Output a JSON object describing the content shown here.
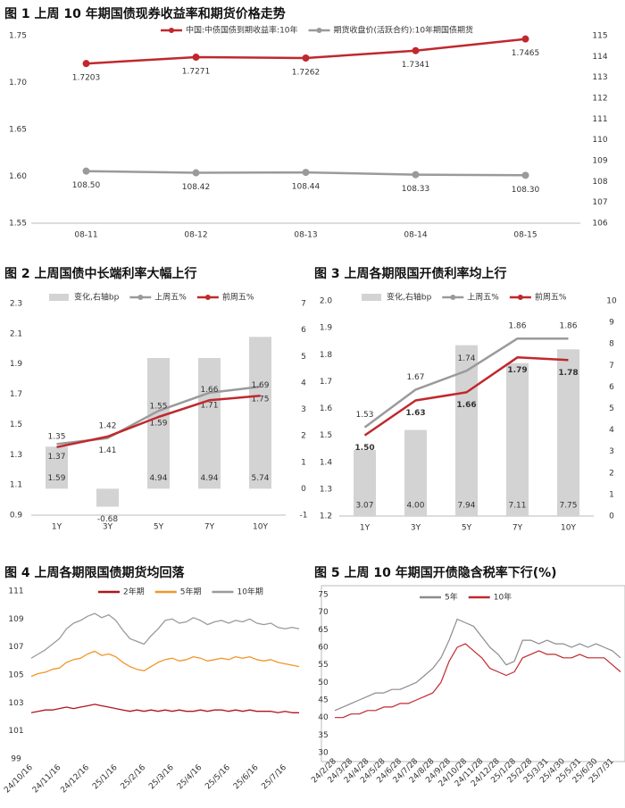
{
  "chart_data": [
    {
      "type": "line",
      "title": "图 1  上周 10 年期国债现券收益率和期货价格走势",
      "categories": [
        "08-11",
        "08-12",
        "08-13",
        "08-14",
        "08-15"
      ],
      "series": [
        {
          "name": "中国:中债国债到期收益率:10年",
          "color": "#c0282d",
          "values": [
            1.7203,
            1.7271,
            1.7262,
            1.7341,
            1.7465
          ]
        },
        {
          "name": "期货收盘价(活跃合约):10年期国债期货",
          "color": "#9a9a9a",
          "axis": "y2",
          "values": [
            108.5,
            108.42,
            108.44,
            108.33,
            108.3
          ],
          "value_labels": [
            "108.50",
            "108.42",
            "108.44",
            "108.33",
            "108.30"
          ]
        }
      ],
      "ylim": [
        1.55,
        1.75
      ],
      "yticks": [
        1.55,
        {
          "value": 1.6,
          "label": "1.60"
        },
        1.65,
        {
          "value": 1.7,
          "label": "1.70"
        },
        1.75
      ],
      "y2lim": [
        106,
        115
      ],
      "y2ticks": [
        106,
        107,
        108,
        109,
        110,
        111,
        112,
        113,
        114,
        115
      ],
      "data_labels": true
    },
    {
      "type": "bar",
      "title": "图 2  上周国债中长端利率大幅上行",
      "categories": [
        "1Y",
        "3Y",
        "5Y",
        "7Y",
        "10Y"
      ],
      "series": [
        {
          "name": "变化,右轴bp",
          "type": "bar",
          "axis": "y2",
          "color": "#d3d3d3",
          "values": [
            1.59,
            -0.68,
            4.94,
            4.94,
            5.74
          ]
        },
        {
          "name": "上周五%",
          "type": "line",
          "color": "#9a9a9a",
          "values": [
            1.37,
            1.41,
            1.59,
            1.71,
            1.75
          ]
        },
        {
          "name": "前周五%",
          "type": "line",
          "color": "#c0282d",
          "values": [
            1.35,
            1.42,
            1.55,
            1.66,
            1.69
          ]
        }
      ],
      "ylim": [
        0.9,
        2.3
      ],
      "yticks": [
        0.9,
        1.1,
        1.3,
        1.5,
        1.7,
        1.9,
        2.1,
        2.3
      ],
      "y2lim": [
        -1,
        7
      ],
      "y2ticks": [
        -1,
        0,
        1,
        2,
        3,
        4,
        5,
        6,
        7
      ],
      "data_labels": true
    },
    {
      "type": "bar",
      "title": "图 3  上周各期限国开债利率均上行",
      "categories": [
        "1Y",
        "3Y",
        "5Y",
        "7Y",
        "10Y"
      ],
      "series": [
        {
          "name": "变化,右轴bp",
          "type": "bar",
          "axis": "y2",
          "color": "#d3d3d3",
          "values": [
            3.07,
            4,
            7.94,
            7.11,
            7.75
          ],
          "value_labels": [
            "3.07",
            "4.00",
            "7.94",
            "7.11",
            "7.75"
          ]
        },
        {
          "name": "上周五%",
          "type": "line",
          "color": "#9a9a9a",
          "values": [
            1.53,
            1.67,
            1.74,
            1.86,
            1.86
          ]
        },
        {
          "name": "前周五%",
          "type": "line",
          "color": "#c0282d",
          "values": [
            1.5,
            1.63,
            1.66,
            1.79,
            1.78
          ],
          "value_labels": [
            "1.50",
            "1.63",
            "1.66",
            "1.79",
            "1.78"
          ]
        }
      ],
      "ylim": [
        1.2,
        2.0
      ],
      "yticks": [
        1.2,
        1.3,
        1.4,
        1.5,
        1.6,
        1.7,
        1.8,
        1.9,
        {
          "value": 2,
          "label": "2.0"
        }
      ],
      "y2lim": [
        0,
        10
      ],
      "y2ticks": [
        0,
        1,
        2,
        3,
        4,
        5,
        6,
        7,
        8,
        9,
        10
      ],
      "data_labels": true
    },
    {
      "type": "line",
      "title": "图 4  上周各期限国债期货均回落",
      "categories": [
        "24/10/16",
        null,
        null,
        null,
        "24/11/16",
        null,
        null,
        null,
        "24/12/16",
        null,
        null,
        null,
        "25/1/16",
        null,
        null,
        null,
        "25/2/16",
        null,
        null,
        null,
        "25/3/16",
        null,
        null,
        null,
        "25/4/16",
        null,
        null,
        null,
        "25/5/16",
        null,
        null,
        null,
        "25/6/16",
        null,
        null,
        null,
        "25/7/16",
        null,
        null
      ],
      "series": [
        {
          "name": "2年期",
          "color": "#b0141c",
          "values": [
            102.3,
            102.4,
            102.5,
            102.5,
            102.6,
            102.7,
            102.6,
            102.7,
            102.8,
            102.9,
            102.8,
            102.7,
            102.6,
            102.5,
            102.4,
            102.5,
            102.4,
            102.5,
            102.4,
            102.5,
            102.4,
            102.5,
            102.4,
            102.4,
            102.5,
            102.4,
            102.5,
            102.5,
            102.4,
            102.5,
            102.4,
            102.5,
            102.4,
            102.4,
            102.4,
            102.3,
            102.4,
            102.3,
            102.3
          ]
        },
        {
          "name": "5年期",
          "color": "#f0962a",
          "values": [
            104.9,
            105.1,
            105.2,
            105.4,
            105.5,
            105.9,
            106.1,
            106.2,
            106.5,
            106.7,
            106.4,
            106.5,
            106.3,
            105.9,
            105.6,
            105.4,
            105.3,
            105.6,
            105.9,
            106.1,
            106.2,
            106.0,
            106.1,
            106.3,
            106.2,
            106.0,
            106.1,
            106.2,
            106.1,
            106.3,
            106.2,
            106.3,
            106.1,
            106.0,
            106.1,
            105.9,
            105.8,
            105.7,
            105.6
          ]
        },
        {
          "name": "10年期",
          "color": "#9a9a9a",
          "values": [
            106.2,
            106.5,
            106.8,
            107.2,
            107.6,
            108.3,
            108.7,
            108.9,
            109.2,
            109.4,
            109.1,
            109.3,
            108.9,
            108.2,
            107.6,
            107.4,
            107.2,
            107.8,
            108.3,
            108.9,
            109.0,
            108.7,
            108.8,
            109.1,
            108.9,
            108.6,
            108.8,
            108.9,
            108.7,
            108.9,
            108.8,
            109.0,
            108.7,
            108.6,
            108.7,
            108.4,
            108.3,
            108.4,
            108.3
          ]
        }
      ],
      "ylim": [
        99,
        111
      ],
      "yticks": [
        99,
        101,
        103,
        105,
        107,
        109,
        111
      ]
    },
    {
      "type": "line",
      "title": "图 5  上周 10 年期国开债隐含税率下行(%)",
      "categories": [
        "24/2/28",
        null,
        "24/3/28",
        null,
        "24/4/28",
        null,
        "24/5/28",
        null,
        "24/6/28",
        null,
        "24/7/28",
        null,
        "24/8/28",
        null,
        "24/9/28",
        null,
        "24/10/28",
        null,
        "24/11/28",
        null,
        "24/12/28",
        null,
        "25/1/28",
        null,
        "25/2/28",
        null,
        "25/3/31",
        null,
        "25/4/30",
        null,
        "25/5/31",
        null,
        "25/6/30",
        null,
        "25/7/31",
        null
      ],
      "series": [
        {
          "name": "5年",
          "color": "#8c8c8c",
          "values": [
            42,
            43,
            44,
            45,
            46,
            47,
            47,
            48,
            48,
            49,
            50,
            52,
            54,
            57,
            62,
            68,
            67,
            66,
            63,
            60,
            58,
            55,
            56,
            62,
            62,
            61,
            62,
            61,
            61,
            60,
            61,
            60,
            61,
            60,
            59,
            57
          ]
        },
        {
          "name": "10年",
          "color": "#c0282d",
          "values": [
            40,
            40,
            41,
            41,
            42,
            42,
            43,
            43,
            44,
            44,
            45,
            46,
            47,
            50,
            56,
            60,
            61,
            59,
            57,
            54,
            53,
            52,
            53,
            57,
            58,
            59,
            58,
            58,
            57,
            57,
            58,
            57,
            57,
            57,
            55,
            53
          ]
        }
      ],
      "ylim": [
        30,
        75
      ],
      "yticks": [
        30,
        35,
        40,
        45,
        50,
        55,
        60,
        65,
        70,
        75
      ]
    }
  ]
}
